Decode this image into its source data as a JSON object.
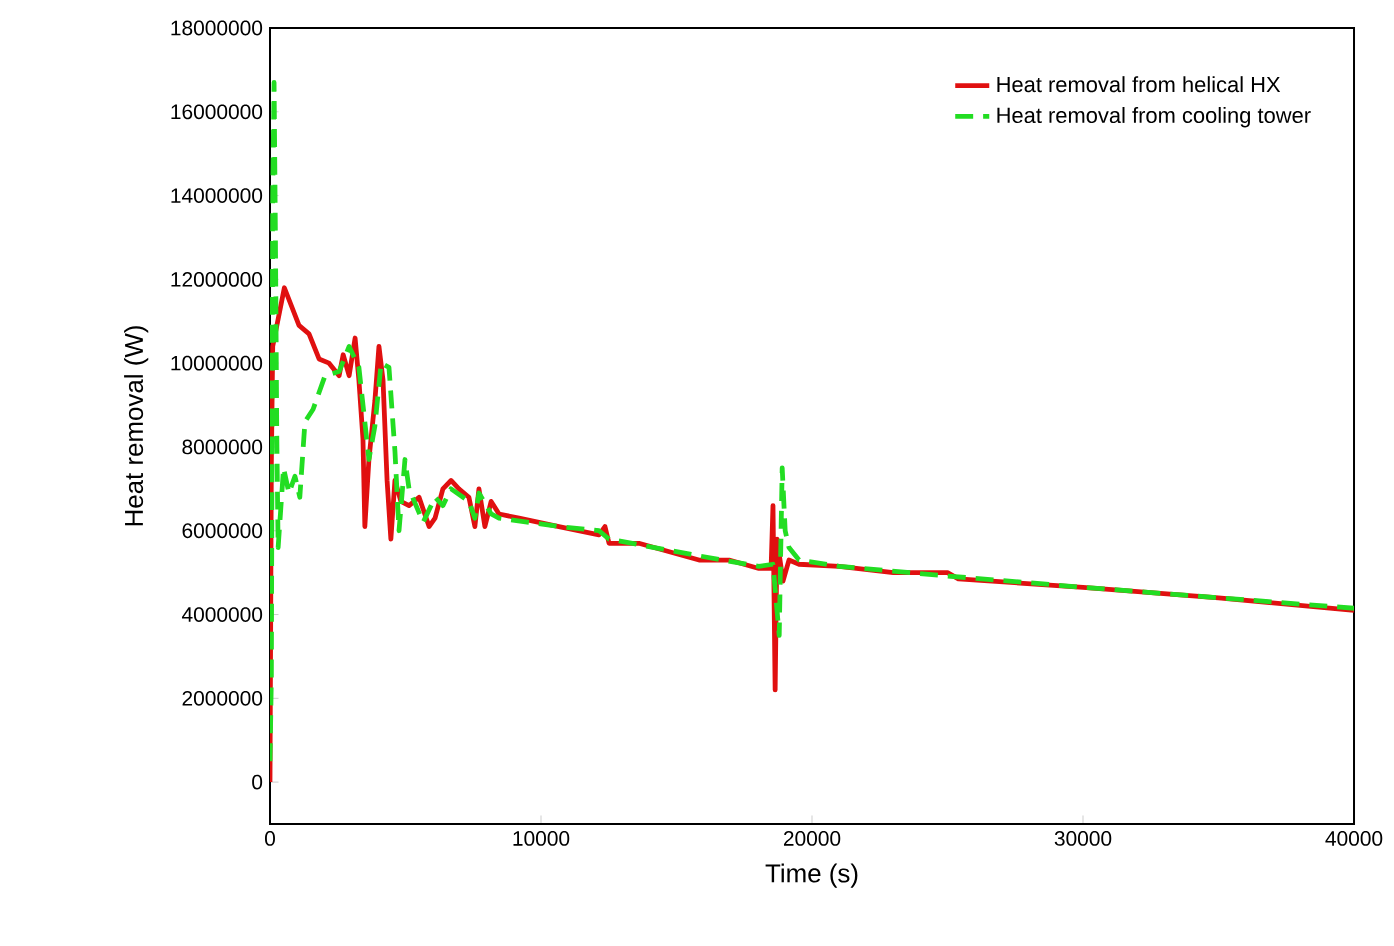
{
  "chart_data": {
    "type": "line",
    "xlabel": "Time (s)",
    "ylabel": "Heat removal (W)",
    "xlim": [
      0,
      40000
    ],
    "ylim": [
      -1000000,
      18000000
    ],
    "xticks": [
      0,
      10000,
      20000,
      30000,
      40000
    ],
    "yticks": [
      0,
      2000000,
      4000000,
      6000000,
      8000000,
      10000000,
      12000000,
      14000000,
      16000000,
      18000000
    ],
    "grid": false,
    "legend": "top right",
    "marker": "none",
    "series": [
      {
        "name": "Heat removal from helical HX",
        "color": "#e01010",
        "line_style": "solid",
        "x": [
          0,
          50,
          100,
          530,
          1070,
          1440,
          1810,
          2180,
          2550,
          2700,
          2920,
          3140,
          3280,
          3430,
          3500,
          3650,
          3870,
          4020,
          4170,
          4320,
          4460,
          4610,
          4830,
          5130,
          5500,
          5870,
          6090,
          6380,
          6680,
          6970,
          7340,
          7560,
          7710,
          7930,
          8160,
          8450,
          9190,
          10660,
          12140,
          12360,
          12510,
          13610,
          15830,
          16940,
          18040,
          18490,
          18560,
          18640,
          18710,
          18930,
          19150,
          19520,
          21000,
          23000,
          25000,
          25400,
          30000,
          35000,
          40000
        ],
        "values": [
          0,
          7600000,
          10400000,
          11800000,
          10900000,
          10700000,
          10100000,
          10000000,
          9700000,
          10200000,
          9700000,
          10600000,
          9600000,
          8200000,
          6100000,
          7700000,
          9100000,
          10400000,
          9600000,
          7200000,
          5800000,
          7200000,
          6700000,
          6600000,
          6800000,
          6100000,
          6300000,
          7000000,
          7200000,
          7000000,
          6800000,
          6100000,
          7000000,
          6100000,
          6700000,
          6400000,
          6300000,
          6100000,
          5900000,
          6100000,
          5700000,
          5700000,
          5300000,
          5300000,
          5100000,
          5100000,
          6600000,
          2200000,
          5800000,
          4800000,
          5300000,
          5200000,
          5150000,
          5000000,
          5000000,
          4850000,
          4650000,
          4400000,
          4100000
        ]
      },
      {
        "name": "Heat removal from cooling tower",
        "color": "#22dd22",
        "line_style": "dashed",
        "x": [
          0,
          50,
          100,
          150,
          200,
          250,
          300,
          500,
          700,
          920,
          1100,
          1290,
          1590,
          2030,
          2550,
          2920,
          3280,
          3650,
          3870,
          4100,
          4390,
          4610,
          4760,
          4980,
          5130,
          5650,
          6090,
          6380,
          6680,
          7340,
          7560,
          7710,
          8160,
          8450,
          10660,
          12140,
          12510,
          15830,
          18040,
          18560,
          18790,
          18900,
          19010,
          19150,
          19520,
          21000,
          25000,
          30000,
          35000,
          40000
        ],
        "values": [
          500000,
          2500000,
          14000000,
          16700000,
          13000000,
          8300000,
          5600000,
          7500000,
          6900000,
          7300000,
          6800000,
          8600000,
          8900000,
          9700000,
          9800000,
          10400000,
          9900000,
          7700000,
          8500000,
          10000000,
          9900000,
          7900000,
          6000000,
          7700000,
          7000000,
          6200000,
          6800000,
          6600000,
          7000000,
          6700000,
          6300000,
          6900000,
          6400000,
          6300000,
          6100000,
          6000000,
          5800000,
          5400000,
          5150000,
          5200000,
          3500000,
          7500000,
          6000000,
          5600000,
          5300000,
          5150000,
          4920000,
          4650000,
          4400000,
          4150000
        ]
      }
    ]
  }
}
